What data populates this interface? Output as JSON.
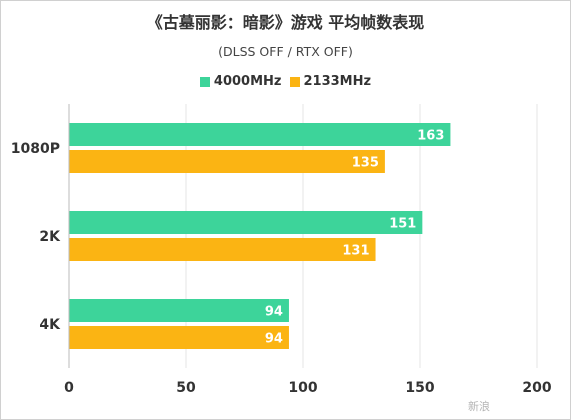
{
  "chart_data": {
    "type": "bar",
    "orientation": "horizontal",
    "title": "《古墓丽影：暗影》游戏 平均帧数表现",
    "subtitle": "(DLSS OFF / RTX OFF)",
    "categories": [
      "1080P",
      "2K",
      "4K"
    ],
    "series": [
      {
        "name": "4000MHz",
        "color": "#3dd49a",
        "values": [
          163,
          151,
          94
        ]
      },
      {
        "name": "2133MHz",
        "color": "#fbb413",
        "values": [
          135,
          131,
          94
        ]
      }
    ],
    "xlim": [
      0,
      200
    ],
    "xticks": [
      0,
      50,
      100,
      150,
      200
    ],
    "grid": true,
    "legend_position": "top"
  },
  "watermark": "新浪"
}
